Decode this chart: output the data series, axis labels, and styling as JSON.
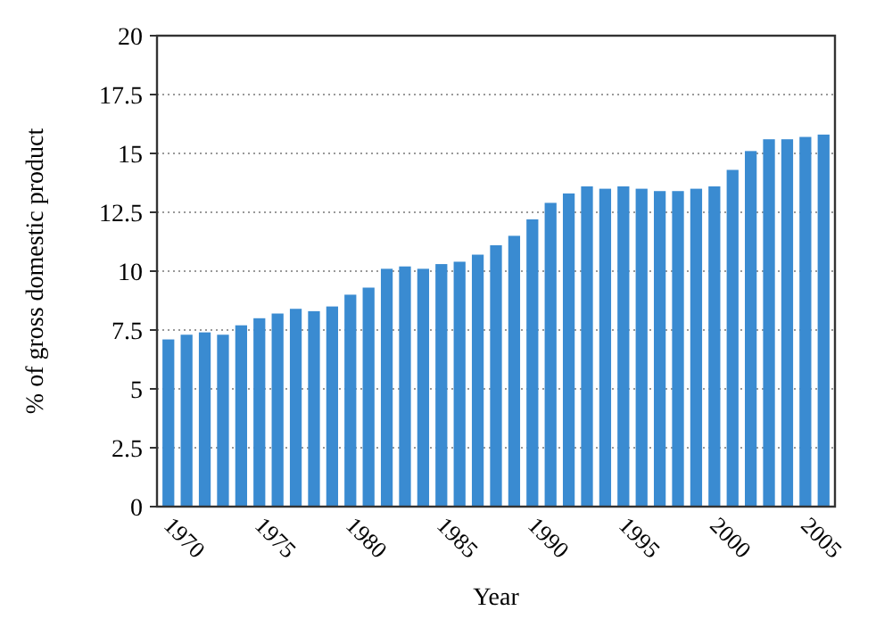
{
  "chart_data": {
    "type": "bar",
    "xlabel": "Year",
    "ylabel": "% of gross domestic product",
    "categories": [
      "1970",
      null,
      null,
      null,
      null,
      "1975",
      null,
      null,
      null,
      null,
      "1980",
      null,
      null,
      null,
      null,
      "1985",
      null,
      null,
      null,
      null,
      "1990",
      null,
      null,
      null,
      null,
      "1995",
      null,
      null,
      null,
      null,
      "2000",
      null,
      null,
      null,
      null,
      "2005",
      null
    ],
    "values": [
      7.1,
      7.3,
      7.4,
      7.3,
      7.7,
      8.0,
      8.2,
      8.4,
      8.3,
      8.5,
      9.0,
      9.3,
      10.1,
      10.2,
      10.1,
      10.3,
      10.4,
      10.7,
      11.1,
      11.5,
      12.2,
      12.9,
      13.3,
      13.6,
      13.5,
      13.6,
      13.5,
      13.4,
      13.4,
      13.5,
      13.6,
      14.3,
      15.1,
      15.6,
      15.6,
      15.7,
      15.8
    ],
    "color": "#3a8bd1",
    "ylim": [
      0,
      20
    ],
    "yticks": [
      0,
      2.5,
      5,
      7.5,
      10,
      12.5,
      15,
      17.5,
      20
    ],
    "grid": "y"
  }
}
